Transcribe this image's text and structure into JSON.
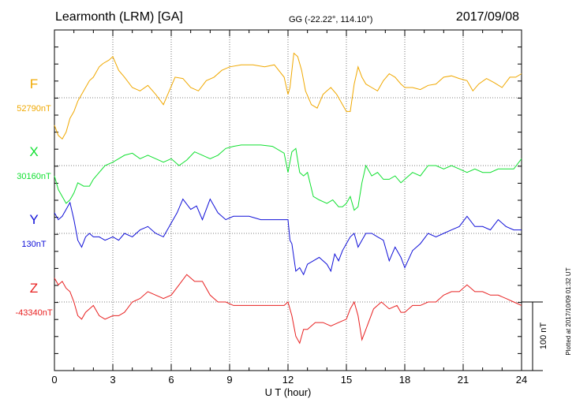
{
  "header": {
    "station": "Learmonth (LRM)  [GA]",
    "coords": "GG (-22.22°, 114.10°)",
    "date": "2017/09/08"
  },
  "footer": {
    "plotted": "Plotted at 2017/10/09 01:32 UT"
  },
  "chart_data": {
    "type": "line",
    "title": "Learmonth (LRM)  [GA]",
    "xlabel": "U T (hour)",
    "xlim": [
      0,
      24
    ],
    "xticks": [
      "0",
      "3",
      "6",
      "9",
      "12",
      "15",
      "18",
      "21",
      "24"
    ],
    "scale_bar": {
      "label": "100 nT",
      "value_nT": 100
    },
    "grid": true,
    "series": [
      {
        "name": "F",
        "baseline_label": "52790nT",
        "baseline_nT": 52790,
        "color": "#f0a800",
        "x": [
          0.0,
          0.2,
          0.4,
          0.6,
          0.8,
          1.0,
          1.2,
          1.5,
          1.8,
          2.0,
          2.3,
          2.5,
          2.8,
          3.0,
          3.3,
          3.6,
          4.0,
          4.4,
          4.8,
          5.2,
          5.6,
          5.9,
          6.2,
          6.6,
          7.0,
          7.4,
          7.8,
          8.2,
          8.6,
          9.0,
          9.6,
          10.2,
          10.8,
          11.3,
          11.8,
          12.0,
          12.1,
          12.3,
          12.5,
          12.7,
          12.9,
          13.2,
          13.5,
          13.8,
          14.0,
          14.2,
          14.5,
          14.8,
          15.0,
          15.2,
          15.4,
          15.6,
          15.8,
          16.0,
          16.3,
          16.6,
          16.9,
          17.2,
          17.5,
          17.8,
          18.0,
          18.4,
          18.8,
          19.2,
          19.6,
          20.0,
          20.4,
          20.8,
          21.2,
          21.5,
          21.8,
          22.2,
          22.6,
          23.0,
          23.4,
          23.7,
          24.0
        ],
        "y": [
          -40,
          -55,
          -60,
          -50,
          -30,
          -20,
          -5,
          10,
          25,
          30,
          45,
          50,
          55,
          60,
          40,
          30,
          15,
          10,
          18,
          5,
          -10,
          10,
          30,
          28,
          15,
          10,
          25,
          30,
          40,
          45,
          48,
          48,
          45,
          48,
          30,
          5,
          15,
          65,
          60,
          40,
          10,
          -10,
          -15,
          5,
          10,
          15,
          5,
          -10,
          -20,
          -20,
          20,
          45,
          30,
          20,
          15,
          10,
          25,
          35,
          30,
          20,
          15,
          15,
          12,
          18,
          20,
          30,
          32,
          28,
          25,
          10,
          20,
          28,
          22,
          15,
          30,
          30,
          35
        ]
      },
      {
        "name": "X",
        "baseline_label": "30160nT",
        "baseline_nT": 30160,
        "color": "#10e030",
        "x": [
          0.0,
          0.2,
          0.4,
          0.6,
          0.8,
          1.0,
          1.2,
          1.5,
          1.8,
          2.0,
          2.3,
          2.6,
          3.0,
          3.3,
          3.6,
          4.0,
          4.4,
          4.8,
          5.2,
          5.6,
          6.0,
          6.4,
          6.8,
          7.2,
          7.6,
          8.0,
          8.4,
          8.8,
          9.2,
          9.6,
          10.0,
          10.6,
          11.2,
          11.8,
          12.0,
          12.2,
          12.4,
          12.6,
          12.8,
          13.0,
          13.3,
          13.6,
          14.0,
          14.3,
          14.6,
          14.8,
          15.0,
          15.2,
          15.4,
          15.6,
          15.8,
          16.0,
          16.3,
          16.6,
          16.9,
          17.2,
          17.5,
          17.8,
          18.0,
          18.4,
          18.8,
          19.2,
          19.6,
          20.0,
          20.4,
          20.8,
          21.2,
          21.6,
          22.0,
          22.4,
          22.8,
          23.2,
          23.6,
          24.0
        ],
        "y": [
          -15,
          -35,
          -45,
          -55,
          -50,
          -40,
          -25,
          -30,
          -30,
          -20,
          -10,
          0,
          5,
          10,
          15,
          18,
          10,
          15,
          10,
          5,
          10,
          0,
          8,
          20,
          15,
          10,
          15,
          25,
          28,
          30,
          30,
          30,
          28,
          18,
          -10,
          20,
          25,
          -10,
          -15,
          -10,
          -45,
          -50,
          -55,
          -50,
          -60,
          -60,
          -55,
          -45,
          -65,
          -60,
          -25,
          0,
          -15,
          -10,
          -20,
          -20,
          -15,
          -25,
          -20,
          -10,
          -15,
          0,
          0,
          -5,
          0,
          -5,
          -10,
          -5,
          -10,
          -10,
          -5,
          -5,
          -5,
          10
        ],
        "ylim": [
          -80,
          80
        ]
      },
      {
        "name": "Y",
        "baseline_label": "130nT",
        "baseline_nT": 130,
        "color": "#1010d8",
        "x": [
          0.0,
          0.2,
          0.4,
          0.6,
          0.8,
          1.0,
          1.2,
          1.4,
          1.6,
          1.8,
          2.0,
          2.3,
          2.6,
          3.0,
          3.3,
          3.6,
          4.0,
          4.4,
          4.8,
          5.2,
          5.6,
          6.0,
          6.3,
          6.6,
          7.0,
          7.3,
          7.6,
          8.0,
          8.4,
          8.8,
          9.2,
          9.6,
          10.0,
          10.6,
          11.2,
          11.8,
          12.0,
          12.1,
          12.2,
          12.4,
          12.6,
          12.8,
          13.0,
          13.3,
          13.6,
          14.0,
          14.2,
          14.4,
          14.6,
          14.8,
          15.0,
          15.2,
          15.4,
          15.6,
          15.8,
          16.0,
          16.3,
          16.6,
          16.9,
          17.2,
          17.5,
          17.8,
          18.0,
          18.4,
          18.8,
          19.2,
          19.6,
          20.0,
          20.4,
          20.8,
          21.2,
          21.6,
          22.0,
          22.4,
          22.8,
          23.2,
          23.6,
          24.0
        ],
        "y": [
          30,
          20,
          25,
          35,
          45,
          20,
          -10,
          -20,
          -5,
          0,
          -5,
          -5,
          -10,
          -5,
          -10,
          0,
          -5,
          5,
          10,
          0,
          -5,
          15,
          30,
          50,
          35,
          40,
          20,
          50,
          30,
          20,
          25,
          25,
          25,
          20,
          20,
          20,
          20,
          -10,
          -15,
          -55,
          -50,
          -60,
          -45,
          -40,
          -35,
          -45,
          -55,
          -30,
          -40,
          -25,
          -15,
          -5,
          0,
          -20,
          -10,
          0,
          0,
          -5,
          -10,
          -40,
          -20,
          -35,
          -50,
          -25,
          -15,
          0,
          -5,
          0,
          5,
          10,
          25,
          10,
          10,
          5,
          20,
          10,
          5,
          5
        ]
      },
      {
        "name": "Z",
        "baseline_label": "-43340nT",
        "baseline_nT": -43340,
        "color": "#e82020",
        "x": [
          0.0,
          0.2,
          0.4,
          0.6,
          0.8,
          1.0,
          1.2,
          1.4,
          1.6,
          1.8,
          2.0,
          2.3,
          2.6,
          3.0,
          3.3,
          3.6,
          4.0,
          4.4,
          4.8,
          5.2,
          5.6,
          6.0,
          6.4,
          6.8,
          7.2,
          7.6,
          8.0,
          8.4,
          8.8,
          9.2,
          9.6,
          10.0,
          10.6,
          11.2,
          11.8,
          12.0,
          12.2,
          12.4,
          12.6,
          12.8,
          13.0,
          13.4,
          13.8,
          14.2,
          14.6,
          15.0,
          15.2,
          15.4,
          15.6,
          15.8,
          16.0,
          16.4,
          16.8,
          17.2,
          17.6,
          17.8,
          18.0,
          18.4,
          18.8,
          19.2,
          19.6,
          20.0,
          20.4,
          20.8,
          21.2,
          21.6,
          22.0,
          22.4,
          22.8,
          23.2,
          23.6,
          24.0
        ],
        "y": [
          35,
          25,
          30,
          20,
          15,
          0,
          -20,
          -25,
          -15,
          -10,
          -5,
          -20,
          -25,
          -20,
          -20,
          -15,
          0,
          5,
          15,
          10,
          5,
          10,
          25,
          40,
          30,
          30,
          10,
          0,
          0,
          -5,
          -5,
          -5,
          -5,
          -5,
          -5,
          0,
          -20,
          -50,
          -60,
          -40,
          -40,
          -30,
          -30,
          -35,
          -30,
          -25,
          -10,
          0,
          -20,
          -55,
          -40,
          -10,
          0,
          -10,
          -5,
          -15,
          -15,
          -5,
          -5,
          0,
          0,
          10,
          15,
          15,
          25,
          15,
          15,
          10,
          10,
          5,
          0,
          -5
        ],
        "ylim": [
          -80,
          80
        ]
      }
    ]
  }
}
